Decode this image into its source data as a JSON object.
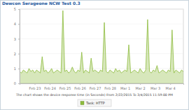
{
  "chart_data": {
    "type": "line",
    "title": "Dewcon Serageone NCW Test 0.3",
    "subtitle": "The chart shows the device response time (in Seconds) From 2/22/2015 To 3/4/2015 11:59:00 PM",
    "categories": [
      null,
      null,
      null,
      null,
      null,
      null,
      null,
      null,
      "Feb 23",
      null,
      null,
      null,
      null,
      null,
      null,
      null,
      "Feb 24",
      null,
      null,
      null,
      null,
      null,
      null,
      null,
      "Feb 25",
      null,
      null,
      null,
      null,
      null,
      null,
      null,
      "Feb 26",
      null,
      null,
      null,
      null,
      null,
      null,
      null,
      "Feb 27",
      null,
      null,
      null,
      null,
      null,
      null,
      null,
      "Feb 28",
      null,
      null,
      null,
      null,
      null,
      null,
      null,
      "Mar 1",
      null,
      null,
      null,
      null,
      null,
      null,
      null,
      "Mar 2",
      null,
      null,
      null,
      null,
      null,
      null,
      null,
      "Mar 3",
      null,
      null,
      null,
      null,
      null,
      null,
      null,
      "Mar 4",
      null,
      null,
      null,
      null,
      null,
      null,
      null
    ],
    "series": [
      {
        "name": "Task: HTTP",
        "color": "#8dbb3c",
        "values": [
          0.8,
          0.7,
          0.9,
          0.8,
          0.7,
          1.0,
          0.8,
          0.9,
          0.7,
          0.9,
          0.8,
          0.7,
          1.8,
          0.8,
          0.9,
          0.7,
          0.8,
          1.0,
          0.7,
          0.8,
          0.9,
          0.8,
          0.7,
          4.9,
          0.8,
          0.9,
          0.7,
          0.8,
          1.1,
          0.8,
          0.7,
          0.9,
          0.8,
          2.1,
          0.7,
          0.9,
          0.8,
          0.7,
          1.7,
          0.8,
          0.9,
          0.8,
          0.7,
          0.9,
          0.8,
          4.1,
          0.8,
          0.7,
          0.9,
          0.8,
          0.7,
          1.0,
          0.8,
          0.9,
          0.7,
          0.8,
          0.9,
          0.8,
          2.6,
          0.7,
          0.8,
          0.9,
          0.8,
          0.7,
          1.0,
          0.8,
          0.7,
          0.9,
          4.3,
          0.8,
          0.7,
          0.9,
          0.8,
          1.2,
          0.7,
          0.8,
          0.9,
          0.8,
          0.7,
          0.9,
          0.8,
          3.6,
          0.7,
          0.9,
          0.8,
          0.7,
          0.9,
          0.8
        ]
      }
    ],
    "ylim": [
      0,
      5
    ],
    "yticks": [
      0,
      1,
      2,
      3,
      4,
      5
    ],
    "grid": true
  }
}
